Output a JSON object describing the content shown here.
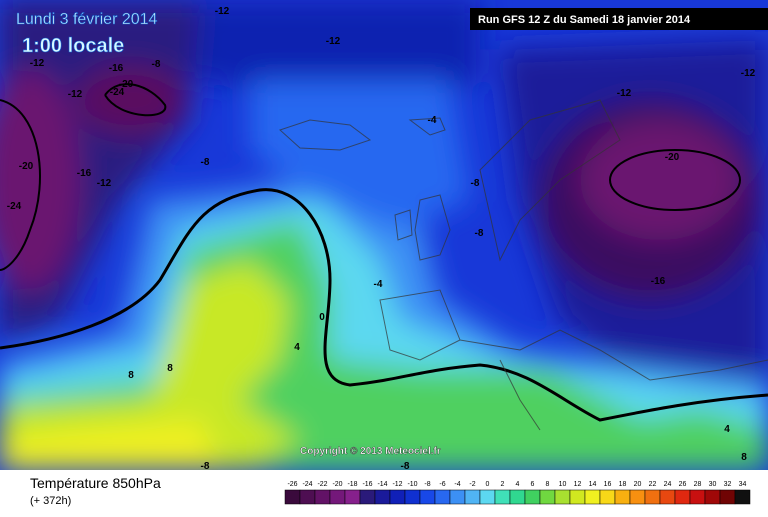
{
  "header": {
    "date": "Lundi 3 février 2014",
    "time": "1:00 locale",
    "run": "Run GFS 12 Z du Samedi 18 janvier 2014"
  },
  "map": {
    "copyright": "Copyright © 2013 Meteociel.fr",
    "contour_labels": [
      -12,
      -12,
      -12,
      -16,
      -8,
      -20,
      -24,
      -12,
      -20,
      -16,
      -12,
      -24,
      -8,
      -4,
      -12,
      -12,
      -20,
      -8,
      -8,
      -16,
      -4,
      0,
      4,
      8,
      8,
      -8,
      -8,
      4,
      8
    ]
  },
  "legend": {
    "title": "Température 850hPa",
    "lead": "(+ 372h)",
    "values": [
      -26,
      -24,
      -22,
      -20,
      -18,
      -16,
      -14,
      -12,
      -10,
      -8,
      -6,
      -4,
      -2,
      0,
      2,
      4,
      6,
      8,
      10,
      12,
      14,
      16,
      18,
      20,
      22,
      24,
      26,
      28,
      30,
      32,
      34
    ],
    "colors": [
      "#3a0a3c",
      "#4e0e52",
      "#621266",
      "#74187a",
      "#86208c",
      "#2a1a7a",
      "#1a1a9a",
      "#1020b8",
      "#1030d0",
      "#1848e8",
      "#2868f0",
      "#3c90f4",
      "#50b4f4",
      "#5cd8f0",
      "#40e0b8",
      "#30d890",
      "#40d060",
      "#70d840",
      "#a8e030",
      "#d0e820",
      "#f0f020",
      "#f8d818",
      "#f8b010",
      "#f89010",
      "#f07010",
      "#e84810",
      "#e02810",
      "#c81010",
      "#a00808",
      "#700404",
      "#101010"
    ]
  }
}
